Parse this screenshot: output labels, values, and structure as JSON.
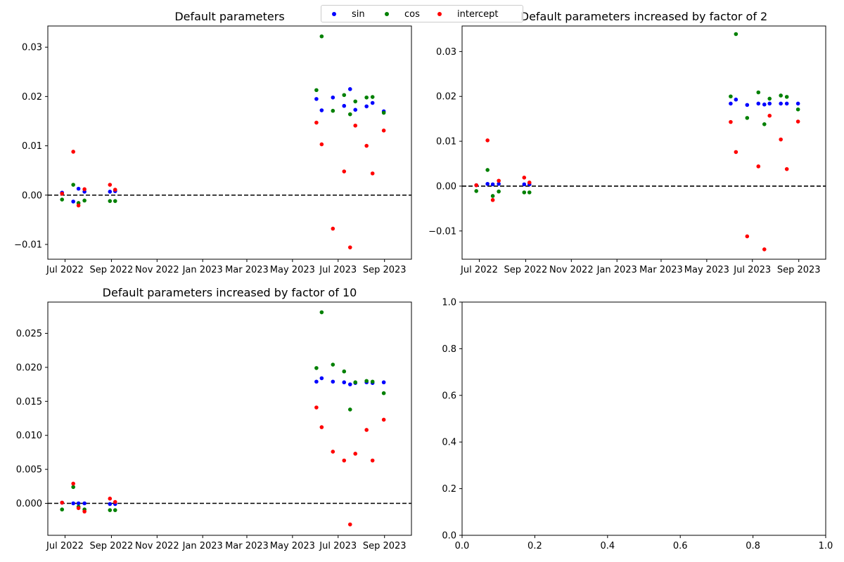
{
  "figure": {
    "legend": [
      {
        "label": "sin",
        "color": "#0000ff"
      },
      {
        "label": "cos",
        "color": "#008000"
      },
      {
        "label": "intercept",
        "color": "#ff0000"
      }
    ]
  },
  "chart_data": [
    {
      "type": "scatter",
      "title": "Default parameters",
      "x_axis": {
        "type": "date",
        "range": [
          "2022-06-08",
          "2023-10-07"
        ],
        "ticks": [
          "Jul 2022",
          "Sep 2022",
          "Nov 2022",
          "Jan 2023",
          "Mar 2023",
          "May 2023",
          "Jul 2023",
          "Sep 2023"
        ]
      },
      "ylim": [
        -0.013,
        0.0343
      ],
      "yticks": [
        "0.03",
        "0.02",
        "0.01",
        "0.00",
        "−0.01"
      ],
      "reference_line": {
        "y": 0,
        "style": "dashed",
        "color": "#000000"
      },
      "series": [
        {
          "name": "sin",
          "color": "#0000ff",
          "points": [
            [
              "2022-06-27",
              0.0005
            ],
            [
              "2022-07-12",
              -0.0013
            ],
            [
              "2022-07-19",
              0.0013
            ],
            [
              "2022-07-27",
              0.0007
            ],
            [
              "2022-08-30",
              0.0007
            ],
            [
              "2022-09-06",
              0.0008
            ],
            [
              "2023-06-02",
              0.0195
            ],
            [
              "2023-06-09",
              0.0172
            ],
            [
              "2023-06-24",
              0.0198
            ],
            [
              "2023-07-09",
              0.0181
            ],
            [
              "2023-07-17",
              0.0215
            ],
            [
              "2023-07-24",
              0.0173
            ],
            [
              "2023-08-08",
              0.018
            ],
            [
              "2023-08-16",
              0.0187
            ],
            [
              "2023-08-31",
              0.017
            ]
          ]
        },
        {
          "name": "cos",
          "color": "#008000",
          "points": [
            [
              "2022-06-27",
              -0.0009
            ],
            [
              "2022-07-12",
              0.0021
            ],
            [
              "2022-07-19",
              -0.0016
            ],
            [
              "2022-07-27",
              -0.0011
            ],
            [
              "2022-08-30",
              -0.0012
            ],
            [
              "2022-09-06",
              -0.0012
            ],
            [
              "2023-06-02",
              0.0213
            ],
            [
              "2023-06-09",
              0.0322
            ],
            [
              "2023-06-24",
              0.0171
            ],
            [
              "2023-07-09",
              0.0203
            ],
            [
              "2023-07-17",
              0.0164
            ],
            [
              "2023-07-24",
              0.019
            ],
            [
              "2023-08-08",
              0.0198
            ],
            [
              "2023-08-16",
              0.0199
            ],
            [
              "2023-08-31",
              0.0167
            ]
          ]
        },
        {
          "name": "intercept",
          "color": "#ff0000",
          "points": [
            [
              "2022-06-27",
              0.0003
            ],
            [
              "2022-07-12",
              0.0088
            ],
            [
              "2022-07-19",
              -0.0021
            ],
            [
              "2022-07-27",
              0.0012
            ],
            [
              "2022-08-30",
              0.0021
            ],
            [
              "2022-09-06",
              0.0011
            ],
            [
              "2023-06-02",
              0.0147
            ],
            [
              "2023-06-09",
              0.0103
            ],
            [
              "2023-06-24",
              -0.0068
            ],
            [
              "2023-07-09",
              0.0048
            ],
            [
              "2023-07-17",
              -0.0106
            ],
            [
              "2023-07-24",
              0.0141
            ],
            [
              "2023-08-08",
              0.01
            ],
            [
              "2023-08-16",
              0.0044
            ],
            [
              "2023-08-31",
              0.0131
            ]
          ]
        }
      ]
    },
    {
      "type": "scatter",
      "title": "Default parameters increased by factor of 2",
      "x_axis": {
        "type": "date",
        "range": [
          "2022-06-08",
          "2023-10-07"
        ],
        "ticks": [
          "Jul 2022",
          "Sep 2022",
          "Nov 2022",
          "Jan 2023",
          "Mar 2023",
          "May 2023",
          "Jul 2023",
          "Sep 2023"
        ]
      },
      "ylim": [
        -0.0163,
        0.0357
      ],
      "yticks": [
        "0.03",
        "0.02",
        "0.01",
        "0.00",
        "−0.01"
      ],
      "reference_line": {
        "y": 0,
        "style": "dashed",
        "color": "#000000"
      },
      "series": [
        {
          "name": "sin",
          "color": "#0000ff",
          "points": [
            [
              "2022-06-27",
              0.0002
            ],
            [
              "2022-07-12",
              0.0005
            ],
            [
              "2022-07-19",
              0.0004
            ],
            [
              "2022-07-27",
              0.0005
            ],
            [
              "2022-08-30",
              0.0004
            ],
            [
              "2022-09-06",
              0.0004
            ],
            [
              "2023-06-02",
              0.0184
            ],
            [
              "2023-06-09",
              0.0193
            ],
            [
              "2023-06-24",
              0.0181
            ],
            [
              "2023-07-09",
              0.0184
            ],
            [
              "2023-07-17",
              0.0182
            ],
            [
              "2023-07-24",
              0.0184
            ],
            [
              "2023-08-08",
              0.0184
            ],
            [
              "2023-08-16",
              0.0184
            ],
            [
              "2023-08-31",
              0.0184
            ]
          ]
        },
        {
          "name": "cos",
          "color": "#008000",
          "points": [
            [
              "2022-06-27",
              -0.0011
            ],
            [
              "2022-07-12",
              0.0036
            ],
            [
              "2022-07-19",
              -0.0022
            ],
            [
              "2022-07-27",
              -0.0012
            ],
            [
              "2022-08-30",
              -0.0014
            ],
            [
              "2022-09-06",
              -0.0014
            ],
            [
              "2023-06-02",
              0.02
            ],
            [
              "2023-06-09",
              0.0339
            ],
            [
              "2023-06-24",
              0.0152
            ],
            [
              "2023-07-09",
              0.0209
            ],
            [
              "2023-07-17",
              0.0138
            ],
            [
              "2023-07-24",
              0.0195
            ],
            [
              "2023-08-08",
              0.0202
            ],
            [
              "2023-08-16",
              0.0199
            ],
            [
              "2023-08-31",
              0.0171
            ]
          ]
        },
        {
          "name": "intercept",
          "color": "#ff0000",
          "points": [
            [
              "2022-06-27",
              0.0002
            ],
            [
              "2022-07-12",
              0.0102
            ],
            [
              "2022-07-19",
              -0.0031
            ],
            [
              "2022-07-27",
              0.0012
            ],
            [
              "2022-08-30",
              0.0019
            ],
            [
              "2022-09-06",
              0.0008
            ],
            [
              "2023-06-02",
              0.0143
            ],
            [
              "2023-06-09",
              0.0076
            ],
            [
              "2023-06-24",
              -0.0112
            ],
            [
              "2023-07-09",
              0.0044
            ],
            [
              "2023-07-17",
              -0.0141
            ],
            [
              "2023-07-24",
              0.0157
            ],
            [
              "2023-08-08",
              0.0104
            ],
            [
              "2023-08-16",
              0.0038
            ],
            [
              "2023-08-31",
              0.0144
            ]
          ]
        }
      ]
    },
    {
      "type": "scatter",
      "title": "Default parameters increased by factor of 10",
      "x_axis": {
        "type": "date",
        "range": [
          "2022-06-08",
          "2023-10-07"
        ],
        "ticks": [
          "Jul 2022",
          "Sep 2022",
          "Nov 2022",
          "Jan 2023",
          "Mar 2023",
          "May 2023",
          "Jul 2023",
          "Sep 2023"
        ]
      },
      "ylim": [
        -0.0047,
        0.0296
      ],
      "yticks": [
        "0.025",
        "0.020",
        "0.015",
        "0.010",
        "0.005",
        "0.000"
      ],
      "reference_line": {
        "y": 0,
        "style": "dashed",
        "color": "#000000"
      },
      "series": [
        {
          "name": "sin",
          "color": "#0000ff",
          "points": [
            [
              "2022-06-27",
              0.0001
            ],
            [
              "2022-07-12",
              0.0
            ],
            [
              "2022-07-19",
              0.0
            ],
            [
              "2022-07-27",
              0.0
            ],
            [
              "2022-08-30",
              -0.0001
            ],
            [
              "2022-09-06",
              -0.0001
            ],
            [
              "2023-06-02",
              0.0179
            ],
            [
              "2023-06-09",
              0.0184
            ],
            [
              "2023-06-24",
              0.0179
            ],
            [
              "2023-07-09",
              0.0178
            ],
            [
              "2023-07-17",
              0.0175
            ],
            [
              "2023-07-24",
              0.0177
            ],
            [
              "2023-08-08",
              0.0178
            ],
            [
              "2023-08-16",
              0.0177
            ],
            [
              "2023-08-31",
              0.0178
            ]
          ]
        },
        {
          "name": "cos",
          "color": "#008000",
          "points": [
            [
              "2022-06-27",
              -0.0009
            ],
            [
              "2022-07-12",
              0.0024
            ],
            [
              "2022-07-19",
              -0.0005
            ],
            [
              "2022-07-27",
              -0.0009
            ],
            [
              "2022-08-30",
              -0.001
            ],
            [
              "2022-09-06",
              -0.001
            ],
            [
              "2023-06-02",
              0.0199
            ],
            [
              "2023-06-09",
              0.0281
            ],
            [
              "2023-06-24",
              0.0204
            ],
            [
              "2023-07-09",
              0.0194
            ],
            [
              "2023-07-17",
              0.0138
            ],
            [
              "2023-07-24",
              0.0178
            ],
            [
              "2023-08-08",
              0.018
            ],
            [
              "2023-08-16",
              0.0179
            ],
            [
              "2023-08-31",
              0.0162
            ]
          ]
        },
        {
          "name": "intercept",
          "color": "#ff0000",
          "points": [
            [
              "2022-06-27",
              0.0001
            ],
            [
              "2022-07-12",
              0.0029
            ],
            [
              "2022-07-19",
              -0.0007
            ],
            [
              "2022-07-27",
              -0.0012
            ],
            [
              "2022-08-30",
              0.0007
            ],
            [
              "2022-09-06",
              0.0002
            ],
            [
              "2023-06-02",
              0.0141
            ],
            [
              "2023-06-09",
              0.0112
            ],
            [
              "2023-06-24",
              0.0076
            ],
            [
              "2023-07-09",
              0.0063
            ],
            [
              "2023-07-17",
              -0.0031
            ],
            [
              "2023-07-24",
              0.0073
            ],
            [
              "2023-08-08",
              0.0108
            ],
            [
              "2023-08-16",
              0.0063
            ],
            [
              "2023-08-31",
              0.0123
            ]
          ]
        }
      ]
    },
    {
      "type": "scatter",
      "title": "",
      "xlim": [
        0,
        1
      ],
      "ylim": [
        0,
        1
      ],
      "xticks": [
        "0.0",
        "0.2",
        "0.4",
        "0.6",
        "0.8",
        "1.0"
      ],
      "yticks": [
        "0.0",
        "0.2",
        "0.4",
        "0.6",
        "0.8",
        "1.0"
      ],
      "series": []
    }
  ]
}
